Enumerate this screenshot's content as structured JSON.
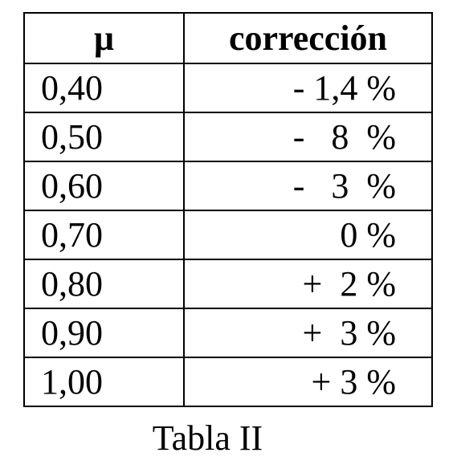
{
  "table": {
    "header": [
      "μ",
      "corrección"
    ],
    "rows": [
      [
        "0,40",
        "- 1,4 %"
      ],
      [
        "0,50",
        "-   8  %"
      ],
      [
        "0,60",
        "-   3  %"
      ],
      [
        "0,70",
        "0 %"
      ],
      [
        "0,80",
        "+  2 %"
      ],
      [
        "0,90",
        "+  3 %"
      ],
      [
        "1,00",
        "+ 3 %"
      ]
    ],
    "caption": "Tabla II"
  }
}
